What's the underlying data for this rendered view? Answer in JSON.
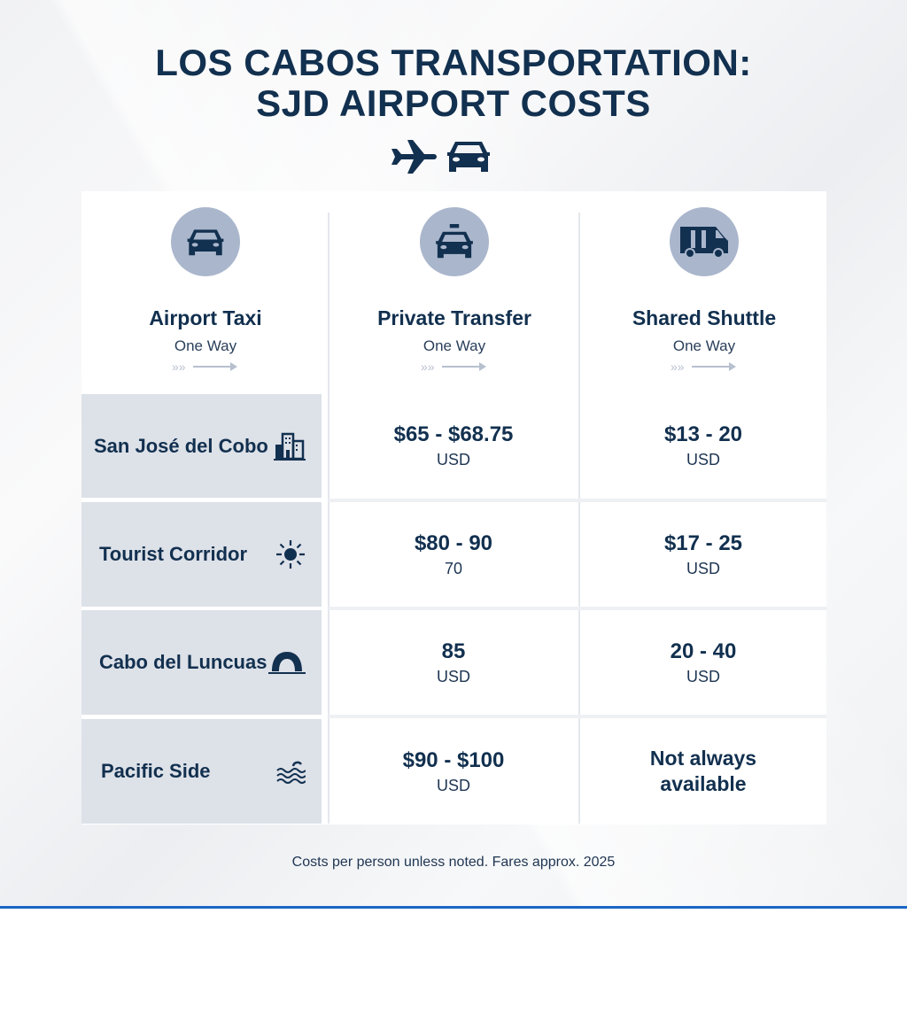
{
  "title": {
    "line1": "LOS CABOS TRANSPORTATION:",
    "line2": "SJD AIRPORT COSTS"
  },
  "colors": {
    "text": "#12304f",
    "label_bg": "#dde1e8",
    "accent_line": "#1a66c6",
    "icon_circle": "#aab6cc"
  },
  "columns": [
    {
      "title": "Airport Taxi",
      "subtitle": "One Way",
      "icon": "car-icon"
    },
    {
      "title": "Private Transfer",
      "subtitle": "One Way",
      "icon": "taxi-icon"
    },
    {
      "title": "Shared Shuttle",
      "subtitle": "One Way",
      "icon": "van-icon"
    }
  ],
  "rows": [
    {
      "label": "San José del Cobo",
      "icon": "buildings-icon",
      "private": {
        "value": "$65 - $68.75",
        "unit": "USD"
      },
      "shuttle": {
        "value": "$13 - 20",
        "unit": "USD"
      }
    },
    {
      "label": "Tourist Corridor",
      "icon": "sun-icon",
      "private": {
        "value": "$80 - 90",
        "unit": "70"
      },
      "shuttle": {
        "value": "$17 - 25",
        "unit": "USD"
      }
    },
    {
      "label": "Cabo del Luncuas",
      "icon": "arch-icon",
      "private": {
        "value": "85",
        "unit": "USD"
      },
      "shuttle": {
        "value": "20 - 40",
        "unit": "USD"
      }
    },
    {
      "label": "Pacific Side",
      "icon": "waves-icon",
      "private": {
        "value": "$90 - $100",
        "unit": "USD"
      },
      "shuttle": {
        "value": "Not always available",
        "unit": ""
      }
    }
  ],
  "footer": "Costs per person unless noted. Fares approx. 2025"
}
